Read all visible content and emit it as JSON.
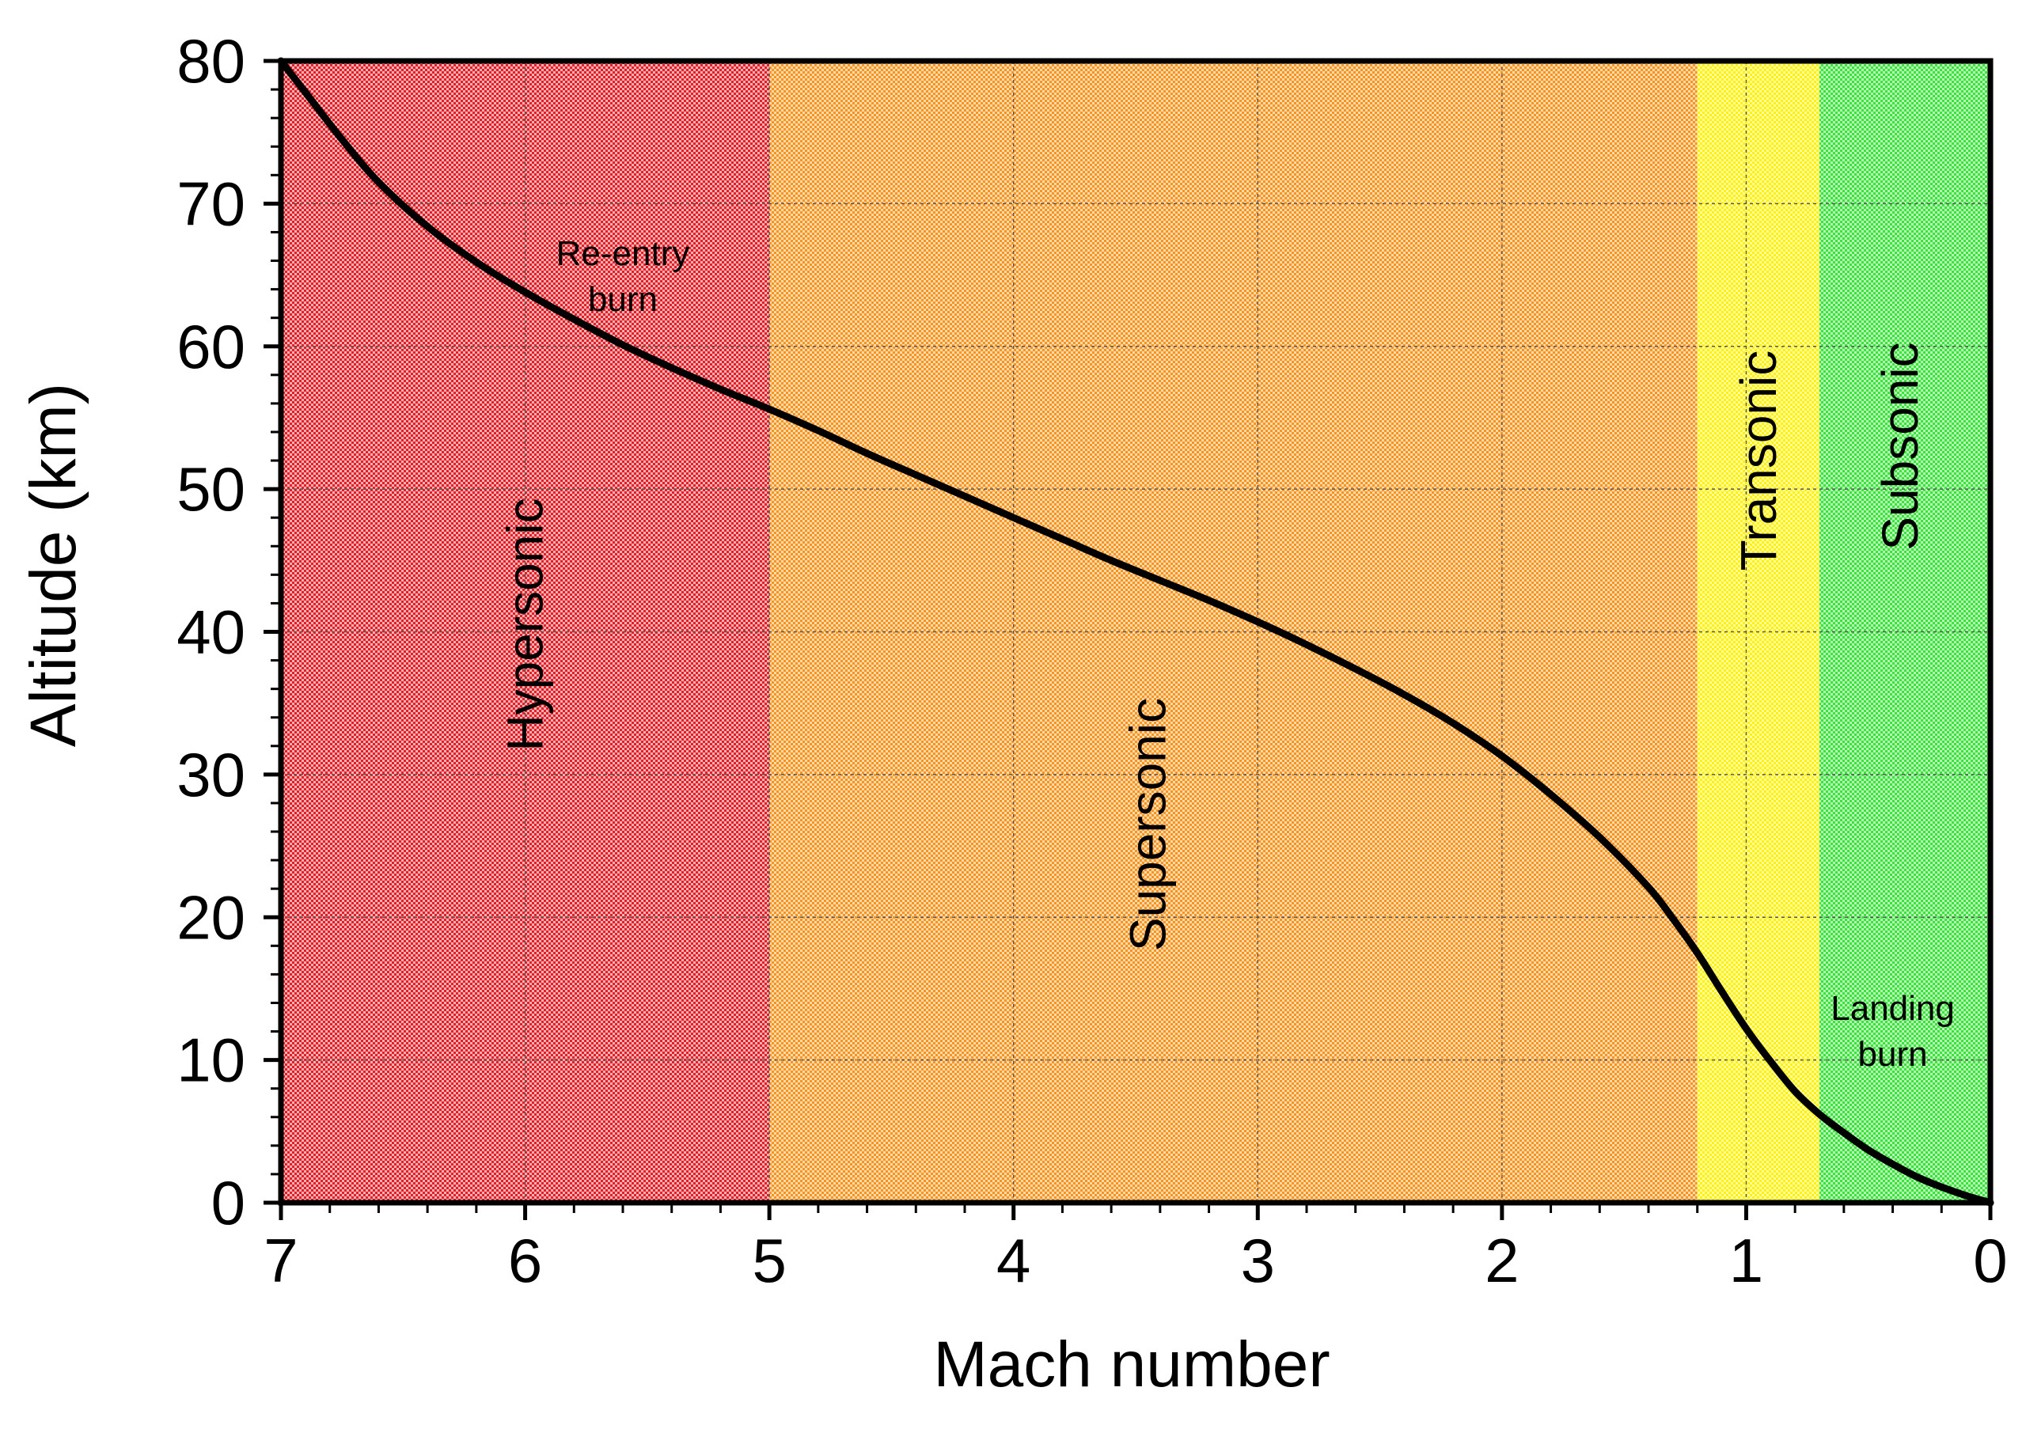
{
  "chart_data": {
    "type": "line",
    "xlabel": "Mach number",
    "ylabel": "Altitude (km)",
    "xlim": [
      7,
      0
    ],
    "ylim": [
      0,
      80
    ],
    "x_reversed": true,
    "grid": true,
    "x_ticks": [
      {
        "value": 7,
        "label": "7"
      },
      {
        "value": 6,
        "label": "6"
      },
      {
        "value": 5,
        "label": "5"
      },
      {
        "value": 4,
        "label": "4"
      },
      {
        "value": 3,
        "label": "3"
      },
      {
        "value": 2,
        "label": "2"
      },
      {
        "value": 1,
        "label": "1"
      },
      {
        "value": 0,
        "label": "0"
      }
    ],
    "y_ticks": [
      {
        "value": 0,
        "label": "0"
      },
      {
        "value": 10,
        "label": "10"
      },
      {
        "value": 20,
        "label": "20"
      },
      {
        "value": 30,
        "label": "30"
      },
      {
        "value": 40,
        "label": "40"
      },
      {
        "value": 50,
        "label": "50"
      },
      {
        "value": 60,
        "label": "60"
      },
      {
        "value": 70,
        "label": "70"
      },
      {
        "value": 80,
        "label": "80"
      }
    ],
    "regions": [
      {
        "label": "Hypersonic",
        "x_from": 7,
        "x_to": 5,
        "color": "#e21f26",
        "label_at": [
          6.0,
          40.5
        ]
      },
      {
        "label": "Supersonic",
        "x_from": 5,
        "x_to": 1.2,
        "color": "#f7941d",
        "label_at": [
          3.45,
          26.5
        ]
      },
      {
        "label": "Transonic",
        "x_from": 1.2,
        "x_to": 0.7,
        "color": "#fff200",
        "label_at": [
          0.95,
          52.0
        ]
      },
      {
        "label": "Subsonic",
        "x_from": 0.7,
        "x_to": 0,
        "color": "#39e33a",
        "label_at": [
          0.37,
          53.0
        ]
      }
    ],
    "annotations": [
      {
        "lines": [
          "Re-entry",
          "burn"
        ],
        "at": [
          5.6,
          65.7
        ]
      },
      {
        "lines": [
          "Landing",
          "burn"
        ],
        "at": [
          0.4,
          12.8
        ]
      }
    ],
    "series": [
      {
        "color": "#000000",
        "x": [
          7.0,
          6.9,
          6.75,
          6.6,
          6.4,
          6.2,
          6.0,
          5.8,
          5.6,
          5.4,
          5.2,
          5.0,
          4.8,
          4.6,
          4.4,
          4.2,
          4.0,
          3.8,
          3.6,
          3.4,
          3.2,
          3.0,
          2.8,
          2.6,
          2.4,
          2.2,
          2.0,
          1.8,
          1.6,
          1.4,
          1.3,
          1.2,
          1.1,
          1.0,
          0.9,
          0.8,
          0.7,
          0.6,
          0.5,
          0.4,
          0.3,
          0.2,
          0.1,
          0.0
        ],
        "y": [
          80.0,
          77.8,
          74.5,
          71.5,
          68.4,
          65.9,
          63.8,
          61.9,
          60.1,
          58.5,
          57.0,
          55.6,
          54.1,
          52.5,
          51.0,
          49.5,
          48.0,
          46.5,
          45.0,
          43.6,
          42.2,
          40.7,
          39.1,
          37.4,
          35.6,
          33.6,
          31.3,
          28.6,
          25.6,
          22.1,
          19.9,
          17.5,
          14.8,
          12.2,
          9.9,
          7.8,
          6.2,
          4.9,
          3.7,
          2.7,
          1.8,
          1.1,
          0.5,
          0.0
        ]
      }
    ]
  }
}
